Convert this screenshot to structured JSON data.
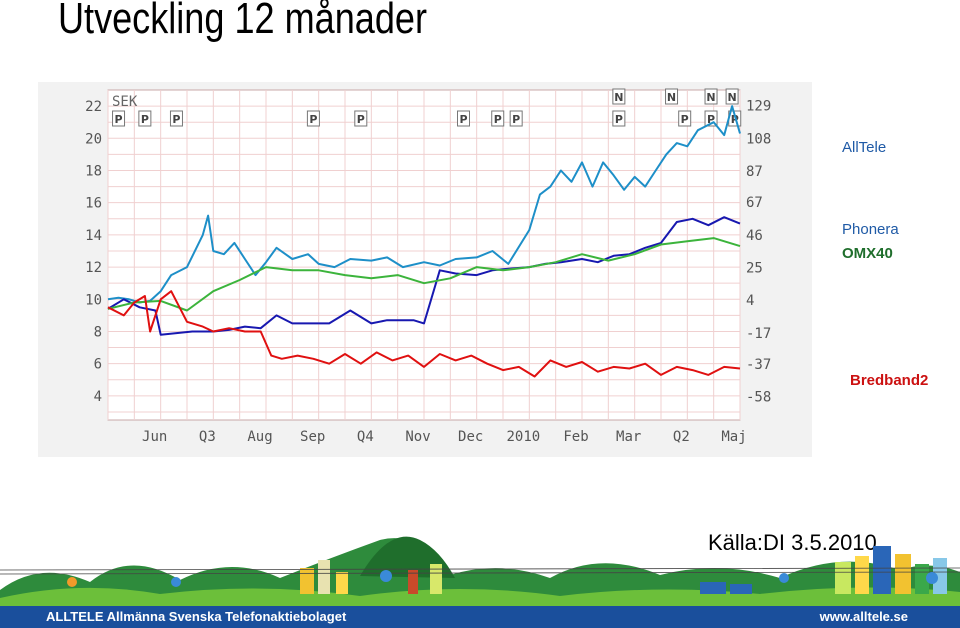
{
  "slide": {
    "title": "Utveckling 12 månader",
    "source": "Källa:DI 3.5.2010"
  },
  "legend": [
    {
      "label": "AllTele",
      "color": "#1f5aa6"
    },
    {
      "label": "Phonera",
      "color": "#1f5aa6"
    },
    {
      "label": "OMX40",
      "color": "#1f6e2c"
    },
    {
      "label": "Bredband2",
      "color": "#cc1111"
    }
  ],
  "footer": {
    "left": "ALLTELE Allmänna Svenska Telefonaktiebolaget",
    "right": "www.alltele.se"
  },
  "chart_data": {
    "type": "line",
    "title": "",
    "currency_label": "SEK",
    "x_ticks": [
      "Jun",
      "Q3",
      "Aug",
      "Sep",
      "Q4",
      "Nov",
      "Dec",
      "2010",
      "Feb",
      "Mar",
      "Q2",
      "Maj"
    ],
    "y_left": {
      "ticks": [
        22,
        20,
        18,
        16,
        14,
        12,
        10,
        8,
        6,
        4
      ],
      "range": [
        2.5,
        23
      ]
    },
    "y_right": {
      "ticks": [
        129,
        108,
        87,
        67,
        46,
        25,
        4,
        -17,
        -37,
        -58
      ],
      "range": [
        -73,
        139
      ]
    },
    "event_markers": {
      "P": [
        0.2,
        0.7,
        1.3,
        3.9,
        4.8,
        6.75,
        7.4,
        7.75,
        9.7,
        10.95,
        11.45,
        11.9
      ],
      "N": [
        9.7,
        10.7,
        11.45,
        11.85
      ]
    },
    "series": [
      {
        "name": "AllTele",
        "color": "#1e8fc8",
        "x": [
          0,
          0.2,
          0.4,
          0.6,
          0.8,
          1.0,
          1.2,
          1.5,
          1.8,
          1.9,
          2.0,
          2.2,
          2.4,
          2.6,
          2.8,
          3.0,
          3.2,
          3.5,
          3.8,
          4.0,
          4.3,
          4.6,
          5.0,
          5.3,
          5.6,
          6.0,
          6.3,
          6.6,
          7.0,
          7.3,
          7.6,
          8.0,
          8.2,
          8.4,
          8.6,
          8.8,
          9.0,
          9.2,
          9.4,
          9.6,
          9.8,
          10.0,
          10.2,
          10.4,
          10.6,
          10.8,
          11.0,
          11.2,
          11.5,
          11.7,
          11.85,
          12.0
        ],
        "y": [
          10.0,
          10.1,
          10.0,
          9.8,
          9.9,
          10.5,
          11.5,
          12.0,
          14.0,
          15.2,
          13.0,
          12.8,
          13.5,
          12.5,
          11.5,
          12.3,
          13.2,
          12.5,
          12.8,
          12.2,
          12.0,
          12.5,
          12.4,
          12.6,
          12.0,
          12.3,
          12.1,
          12.5,
          12.6,
          13.0,
          12.2,
          14.3,
          16.5,
          17.0,
          18.0,
          17.3,
          18.5,
          17.0,
          18.5,
          17.7,
          16.8,
          17.6,
          17.0,
          18.0,
          19.0,
          19.7,
          19.5,
          20.5,
          21.0,
          20.2,
          22.0,
          20.3
        ]
      },
      {
        "name": "Phonera",
        "color": "#1818b0",
        "x": [
          0,
          0.3,
          0.6,
          0.9,
          1.0,
          1.3,
          1.6,
          2.0,
          2.3,
          2.6,
          2.9,
          3.2,
          3.5,
          3.8,
          4.2,
          4.6,
          5.0,
          5.3,
          5.6,
          5.8,
          6.0,
          6.3,
          6.6,
          7.0,
          7.3,
          7.6,
          8.0,
          8.3,
          8.6,
          9.0,
          9.3,
          9.6,
          9.9,
          10.2,
          10.5,
          10.8,
          11.1,
          11.4,
          11.7,
          12.0
        ],
        "y": [
          9.4,
          10.0,
          9.5,
          9.3,
          7.8,
          7.9,
          8.0,
          8.0,
          8.1,
          8.3,
          8.2,
          9.0,
          8.5,
          8.5,
          8.5,
          9.3,
          8.5,
          8.7,
          8.7,
          8.7,
          8.5,
          11.8,
          11.6,
          11.5,
          11.8,
          11.9,
          12.0,
          12.2,
          12.3,
          12.5,
          12.3,
          12.7,
          12.8,
          13.2,
          13.5,
          14.8,
          15.0,
          14.6,
          15.1,
          14.7
        ]
      },
      {
        "name": "OMX40",
        "color": "#3cb43c",
        "x": [
          0,
          0.5,
          1.0,
          1.5,
          2.0,
          2.5,
          3.0,
          3.5,
          4.0,
          4.5,
          5.0,
          5.5,
          6.0,
          6.5,
          7.0,
          7.5,
          8.0,
          8.5,
          9.0,
          9.5,
          10.0,
          10.5,
          11.0,
          11.5,
          12.0
        ],
        "y": [
          9.4,
          9.8,
          9.9,
          9.3,
          10.5,
          11.2,
          12.0,
          11.8,
          11.8,
          11.5,
          11.3,
          11.5,
          11.0,
          11.3,
          12.0,
          11.8,
          12.0,
          12.3,
          12.8,
          12.4,
          12.8,
          13.4,
          13.6,
          13.8,
          13.3
        ]
      },
      {
        "name": "Bredband2",
        "color": "#e01010",
        "x": [
          0,
          0.3,
          0.5,
          0.7,
          0.8,
          1.0,
          1.2,
          1.5,
          1.8,
          2.0,
          2.3,
          2.6,
          2.9,
          3.1,
          3.3,
          3.6,
          3.9,
          4.2,
          4.5,
          4.8,
          5.1,
          5.4,
          5.7,
          6.0,
          6.3,
          6.6,
          6.9,
          7.2,
          7.5,
          7.8,
          8.1,
          8.4,
          8.7,
          9.0,
          9.3,
          9.6,
          9.9,
          10.2,
          10.5,
          10.8,
          11.1,
          11.4,
          11.7,
          12.0
        ],
        "y": [
          9.5,
          9.0,
          9.8,
          10.2,
          8.0,
          10.0,
          10.5,
          8.6,
          8.3,
          8.0,
          8.2,
          8.0,
          8.0,
          6.5,
          6.3,
          6.5,
          6.3,
          6.0,
          6.6,
          6.0,
          6.7,
          6.2,
          6.5,
          5.8,
          6.6,
          6.2,
          6.5,
          6.0,
          5.6,
          5.8,
          5.2,
          6.2,
          5.8,
          6.1,
          5.5,
          5.8,
          5.7,
          6.0,
          5.3,
          5.8,
          5.6,
          5.3,
          5.8,
          5.7
        ]
      }
    ]
  }
}
